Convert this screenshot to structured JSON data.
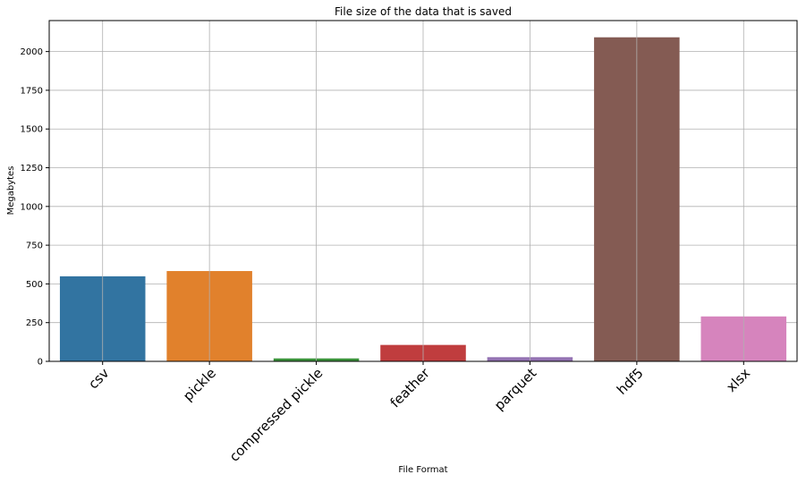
{
  "chart_data": {
    "type": "bar",
    "title": "File size of the data that is saved",
    "xlabel": "File Format",
    "ylabel": "Megabytes",
    "categories": [
      "csv",
      "pickle",
      "compressed pickle",
      "feather",
      "parquet",
      "hdf5",
      "xlsx"
    ],
    "values": [
      549,
      583,
      19,
      106,
      27,
      2092,
      290
    ],
    "colors": [
      "#3274a1",
      "#e1812c",
      "#3a923a",
      "#c03d3e",
      "#9372b2",
      "#845b53",
      "#d684bd"
    ],
    "ylim": [
      0,
      2200
    ],
    "yticks": [
      0,
      250,
      500,
      750,
      1000,
      1250,
      1500,
      1750,
      2000
    ],
    "grid": true,
    "xtick_rotation": 45
  }
}
